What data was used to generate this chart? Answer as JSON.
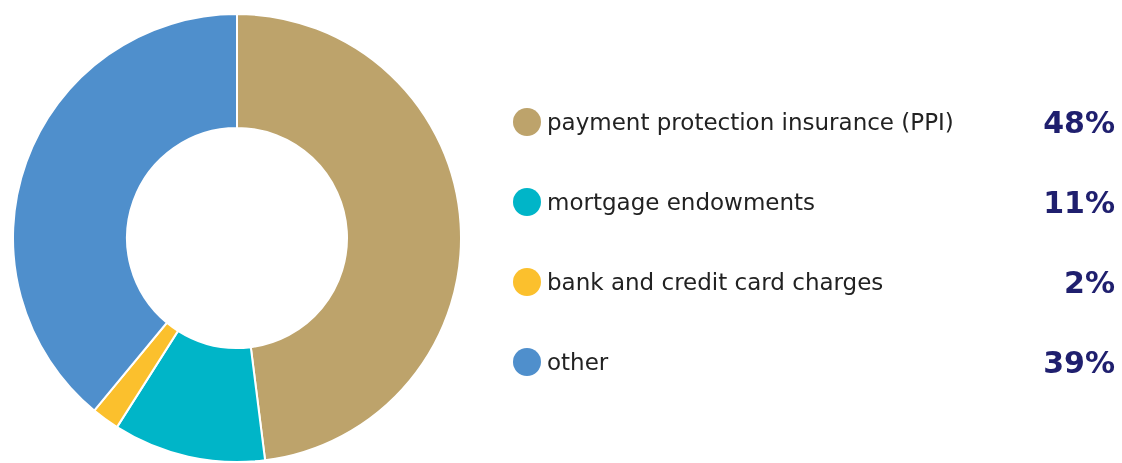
{
  "chart_data": {
    "type": "donut",
    "categories": [
      "payment protection insurance (PPI)",
      "mortgage endowments",
      "bank and credit card charges",
      "other"
    ],
    "values": [
      48,
      11,
      2,
      39
    ],
    "colors": [
      "#bda36b",
      "#00b5c8",
      "#fbc02d",
      "#4f8fcc"
    ],
    "value_labels": [
      "48%",
      "11%",
      "2%",
      "39%"
    ],
    "legend": "right"
  }
}
